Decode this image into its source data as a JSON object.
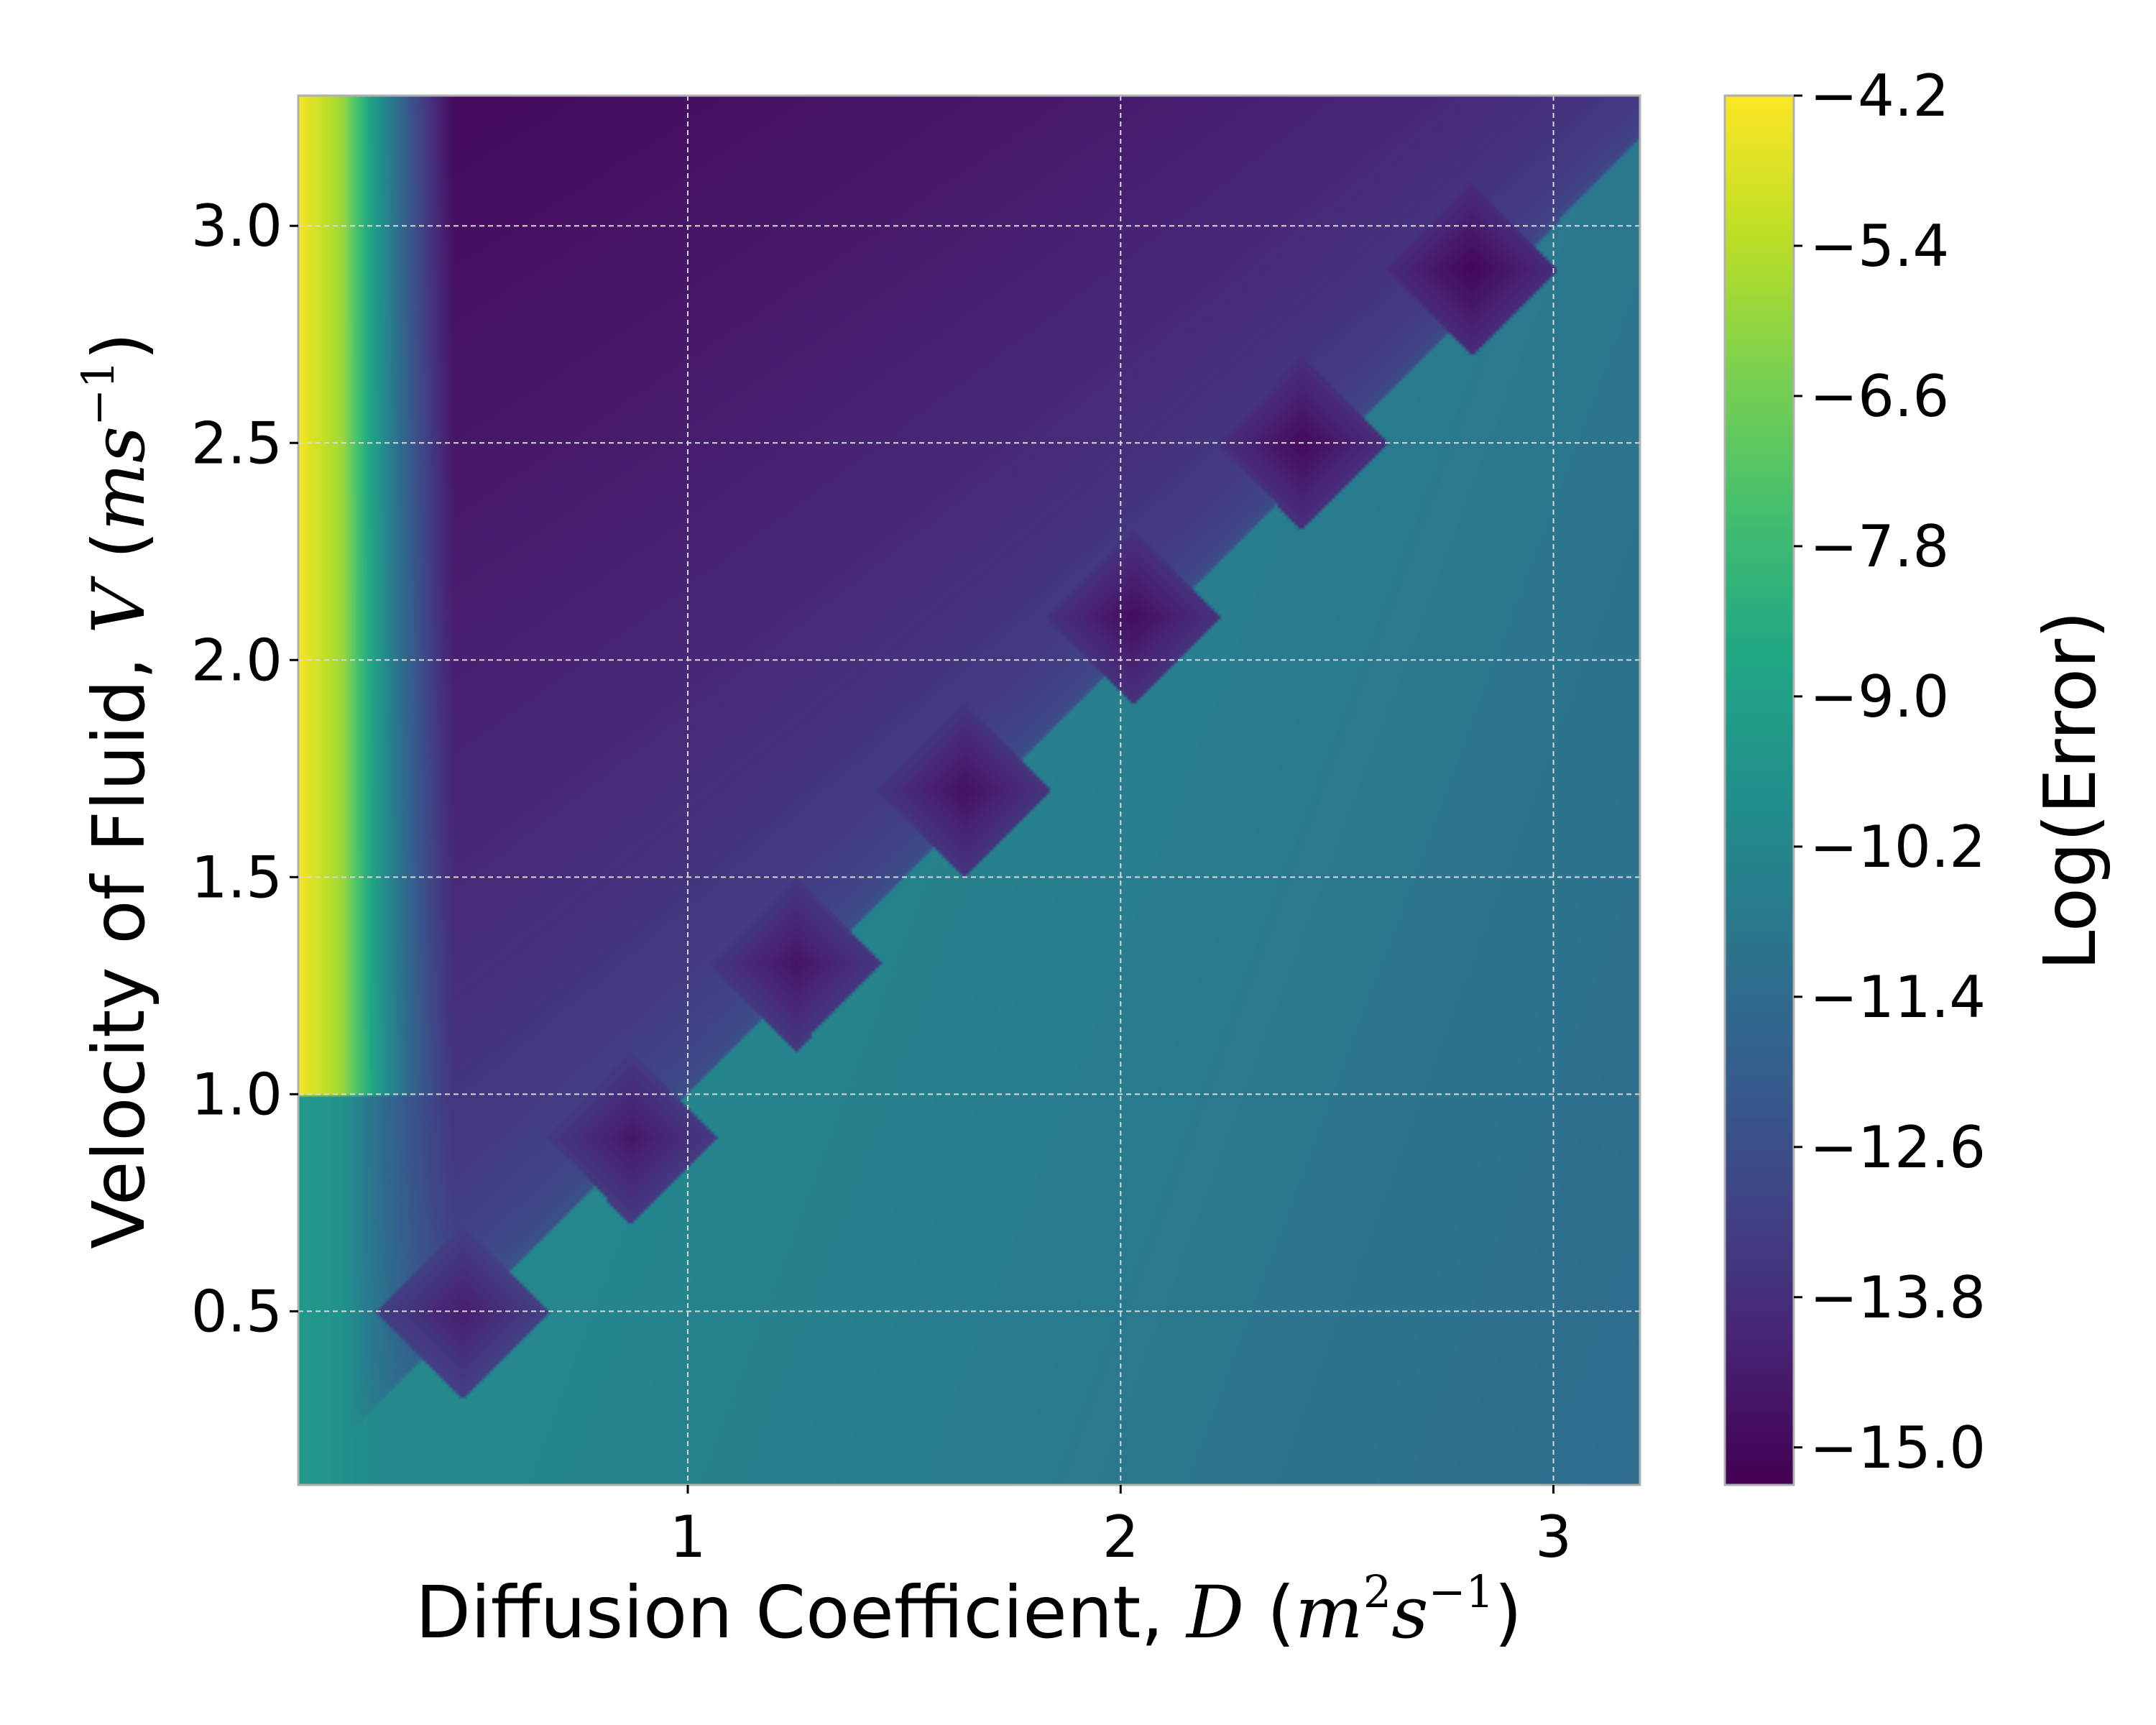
{
  "chart_data": {
    "type": "heatmap",
    "title": "",
    "xlabel": "Diffusion Coefficient,",
    "ylabel": "Velocity of Fluid,",
    "xlabel_math": {
      "symbol": "D",
      "unit_base1": "m",
      "unit_exp1": "2",
      "unit_base2": "s",
      "unit_exp2": "−1"
    },
    "ylabel_math": {
      "symbol": "V",
      "unit_base1": "ms",
      "unit_exp1": "−1"
    },
    "colorbar_label": "Log(Error)",
    "xlim": [
      0.1,
      3.2
    ],
    "ylim": [
      0.1,
      3.3
    ],
    "x_ticks": [
      1,
      2,
      3
    ],
    "x_tick_labels": [
      "1",
      "2",
      "3"
    ],
    "y_ticks": [
      0.5,
      1.0,
      1.5,
      2.0,
      2.5,
      3.0
    ],
    "y_tick_labels": [
      "0.5",
      "1.0",
      "1.5",
      "2.0",
      "2.5",
      "3.0"
    ],
    "colorbar_range": [
      -15.3,
      -4.2
    ],
    "colorbar_ticks": [
      -4.2,
      -5.4,
      -6.6,
      -7.8,
      -9.0,
      -10.2,
      -11.4,
      -12.6,
      -13.8,
      -15.0
    ],
    "colorbar_tick_labels": [
      "−4.2",
      "−5.4",
      "−6.6",
      "−7.8",
      "−9.0",
      "−10.2",
      "−11.4",
      "−12.6",
      "−13.8",
      "−15.0"
    ],
    "colormap": "viridis",
    "grid": true,
    "minima_points": [
      {
        "x": 0.48,
        "y": 0.5,
        "value": -14.4
      },
      {
        "x": 0.87,
        "y": 0.9,
        "value": -14.6
      },
      {
        "x": 1.25,
        "y": 1.3,
        "value": -14.7
      },
      {
        "x": 1.64,
        "y": 1.7,
        "value": -14.8
      },
      {
        "x": 2.03,
        "y": 2.1,
        "value": -14.9
      },
      {
        "x": 2.42,
        "y": 2.5,
        "value": -15.0
      },
      {
        "x": 2.81,
        "y": 2.9,
        "value": -15.1
      }
    ]
  }
}
